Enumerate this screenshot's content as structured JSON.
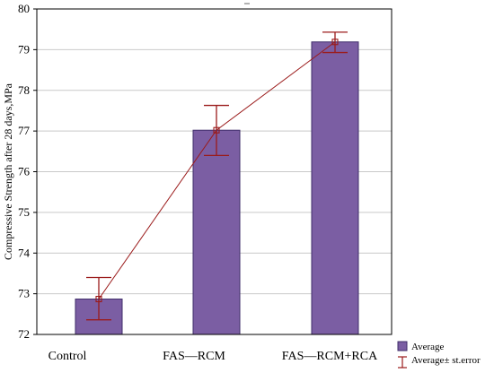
{
  "chart_data": {
    "type": "bar",
    "categories": [
      "Control",
      "FAS—RCM",
      "FAS—RCM+RCA"
    ],
    "series": [
      {
        "name": "Average",
        "values": [
          72.87,
          77.02,
          79.19
        ],
        "error_low": [
          72.36,
          76.4,
          78.93
        ],
        "error_high": [
          73.4,
          77.63,
          79.43
        ]
      }
    ],
    "ylabel": "Compressive Strength after 28 days,MPa",
    "ylim": [
      72,
      80
    ],
    "yticks": [
      72,
      73,
      74,
      75,
      76,
      77,
      78,
      79,
      80
    ],
    "grid": "horizontal",
    "legend": {
      "placement": "bottom-right",
      "entries": [
        "Average",
        "Average± st.error"
      ]
    },
    "colors": {
      "bar_fill": "#7b5ea3",
      "bar_stroke": "#3f2d6a",
      "error_line": "#9b1b1b",
      "grid": "#c9c9c9",
      "axis": "#000000"
    }
  }
}
